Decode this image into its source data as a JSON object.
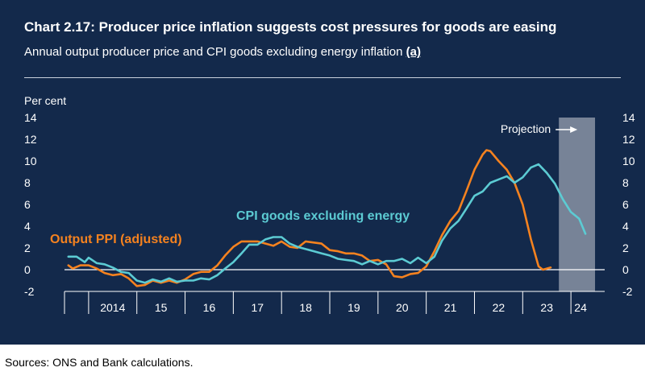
{
  "title": "Chart 2.17: Producer price inflation suggests cost pressures for goods are easing",
  "subtitle": "Annual output producer price and CPI goods excluding energy inflation",
  "subtitle_note": "(a)",
  "sources": "Sources: ONS and Bank calculations.",
  "chart_data": {
    "type": "line",
    "yunit": "Per cent",
    "ylim": [
      -2,
      14
    ],
    "yticks": [
      -2,
      0,
      2,
      4,
      6,
      8,
      10,
      12,
      14
    ],
    "xlim": [
      2013.5,
      2024.7
    ],
    "x_tick_boundaries": [
      2014,
      2015,
      2016,
      2017,
      2018,
      2019,
      2020,
      2021,
      2022,
      2023,
      2024
    ],
    "x_tick_labels": [
      {
        "label": "2014",
        "x": 2014.5
      },
      {
        "label": "15",
        "x": 2015.5
      },
      {
        "label": "16",
        "x": 2016.5
      },
      {
        "label": "17",
        "x": 2017.5
      },
      {
        "label": "18",
        "x": 2018.5
      },
      {
        "label": "19",
        "x": 2019.5
      },
      {
        "label": "20",
        "x": 2020.5
      },
      {
        "label": "21",
        "x": 2021.5
      },
      {
        "label": "22",
        "x": 2022.5
      },
      {
        "label": "23",
        "x": 2023.5
      },
      {
        "label": "24",
        "x": 2024.2
      }
    ],
    "projection": {
      "label": "Projection",
      "start": 2023.75,
      "end": 2024.5
    },
    "colors": {
      "ppi": "#f5821f",
      "cpi": "#5ccbd3",
      "projection": "#8a93a4",
      "grid": "#ffffff",
      "text": "#ffffff"
    },
    "series": [
      {
        "name": "Output PPI (adjusted)",
        "color": "#f5821f",
        "points": [
          [
            2013.58,
            0.4
          ],
          [
            2013.67,
            0.1
          ],
          [
            2013.83,
            0.4
          ],
          [
            2014.0,
            0.4
          ],
          [
            2014.17,
            0.1
          ],
          [
            2014.33,
            -0.3
          ],
          [
            2014.5,
            -0.5
          ],
          [
            2014.67,
            -0.4
          ],
          [
            2014.83,
            -0.8
          ],
          [
            2015.0,
            -1.5
          ],
          [
            2015.17,
            -1.4
          ],
          [
            2015.33,
            -1.0
          ],
          [
            2015.5,
            -1.2
          ],
          [
            2015.67,
            -1.0
          ],
          [
            2015.83,
            -1.2
          ],
          [
            2016.0,
            -0.9
          ],
          [
            2016.17,
            -0.4
          ],
          [
            2016.33,
            -0.2
          ],
          [
            2016.5,
            -0.2
          ],
          [
            2016.67,
            0.4
          ],
          [
            2016.83,
            1.3
          ],
          [
            2017.0,
            2.1
          ],
          [
            2017.17,
            2.6
          ],
          [
            2017.33,
            2.6
          ],
          [
            2017.5,
            2.6
          ],
          [
            2017.67,
            2.4
          ],
          [
            2017.83,
            2.2
          ],
          [
            2018.0,
            2.6
          ],
          [
            2018.17,
            2.1
          ],
          [
            2018.33,
            2.0
          ],
          [
            2018.5,
            2.6
          ],
          [
            2018.67,
            2.5
          ],
          [
            2018.83,
            2.4
          ],
          [
            2019.0,
            1.8
          ],
          [
            2019.17,
            1.7
          ],
          [
            2019.33,
            1.5
          ],
          [
            2019.5,
            1.5
          ],
          [
            2019.67,
            1.3
          ],
          [
            2019.83,
            0.8
          ],
          [
            2020.0,
            0.9
          ],
          [
            2020.17,
            0.5
          ],
          [
            2020.33,
            -0.6
          ],
          [
            2020.5,
            -0.7
          ],
          [
            2020.67,
            -0.4
          ],
          [
            2020.83,
            -0.3
          ],
          [
            2021.0,
            0.3
          ],
          [
            2021.17,
            1.7
          ],
          [
            2021.33,
            3.2
          ],
          [
            2021.5,
            4.5
          ],
          [
            2021.67,
            5.4
          ],
          [
            2021.83,
            7.2
          ],
          [
            2022.0,
            9.2
          ],
          [
            2022.17,
            10.6
          ],
          [
            2022.25,
            11.0
          ],
          [
            2022.33,
            10.9
          ],
          [
            2022.5,
            10.0
          ],
          [
            2022.67,
            9.2
          ],
          [
            2022.83,
            8.0
          ],
          [
            2023.0,
            6.0
          ],
          [
            2023.17,
            2.8
          ],
          [
            2023.33,
            0.3
          ],
          [
            2023.42,
            0.0
          ],
          [
            2023.58,
            0.2
          ]
        ]
      },
      {
        "name": "CPI goods excluding energy",
        "color": "#5ccbd3",
        "points": [
          [
            2013.58,
            1.2
          ],
          [
            2013.75,
            1.2
          ],
          [
            2013.92,
            0.7
          ],
          [
            2014.0,
            1.1
          ],
          [
            2014.17,
            0.6
          ],
          [
            2014.33,
            0.5
          ],
          [
            2014.5,
            0.2
          ],
          [
            2014.67,
            -0.2
          ],
          [
            2014.83,
            -0.3
          ],
          [
            2015.0,
            -1.0
          ],
          [
            2015.17,
            -1.2
          ],
          [
            2015.33,
            -0.9
          ],
          [
            2015.5,
            -1.1
          ],
          [
            2015.67,
            -0.8
          ],
          [
            2015.83,
            -1.1
          ],
          [
            2016.0,
            -1.0
          ],
          [
            2016.17,
            -1.0
          ],
          [
            2016.33,
            -0.8
          ],
          [
            2016.5,
            -0.9
          ],
          [
            2016.67,
            -0.5
          ],
          [
            2016.83,
            0.1
          ],
          [
            2017.0,
            0.7
          ],
          [
            2017.17,
            1.5
          ],
          [
            2017.33,
            2.3
          ],
          [
            2017.5,
            2.3
          ],
          [
            2017.67,
            2.8
          ],
          [
            2017.83,
            3.0
          ],
          [
            2018.0,
            3.0
          ],
          [
            2018.17,
            2.4
          ],
          [
            2018.33,
            2.1
          ],
          [
            2018.5,
            1.9
          ],
          [
            2018.67,
            1.7
          ],
          [
            2018.83,
            1.5
          ],
          [
            2019.0,
            1.3
          ],
          [
            2019.17,
            1.0
          ],
          [
            2019.33,
            0.9
          ],
          [
            2019.5,
            0.8
          ],
          [
            2019.67,
            0.5
          ],
          [
            2019.83,
            0.8
          ],
          [
            2020.0,
            0.5
          ],
          [
            2020.17,
            0.8
          ],
          [
            2020.33,
            0.8
          ],
          [
            2020.5,
            1.0
          ],
          [
            2020.67,
            0.6
          ],
          [
            2020.83,
            1.1
          ],
          [
            2021.0,
            0.6
          ],
          [
            2021.17,
            1.2
          ],
          [
            2021.33,
            2.7
          ],
          [
            2021.5,
            3.8
          ],
          [
            2021.67,
            4.5
          ],
          [
            2021.83,
            5.6
          ],
          [
            2022.0,
            6.8
          ],
          [
            2022.17,
            7.2
          ],
          [
            2022.33,
            8.0
          ],
          [
            2022.5,
            8.3
          ],
          [
            2022.67,
            8.6
          ],
          [
            2022.83,
            8.0
          ],
          [
            2023.0,
            8.5
          ],
          [
            2023.17,
            9.4
          ],
          [
            2023.33,
            9.7
          ],
          [
            2023.5,
            8.9
          ],
          [
            2023.67,
            7.9
          ],
          [
            2023.83,
            6.5
          ],
          [
            2024.0,
            5.3
          ],
          [
            2024.17,
            4.7
          ],
          [
            2024.3,
            3.3
          ]
        ]
      }
    ],
    "annotations": [
      {
        "text": "CPI goods excluding energy",
        "series": "cpi"
      },
      {
        "text": "Output PPI (adjusted)",
        "series": "ppi"
      }
    ]
  }
}
